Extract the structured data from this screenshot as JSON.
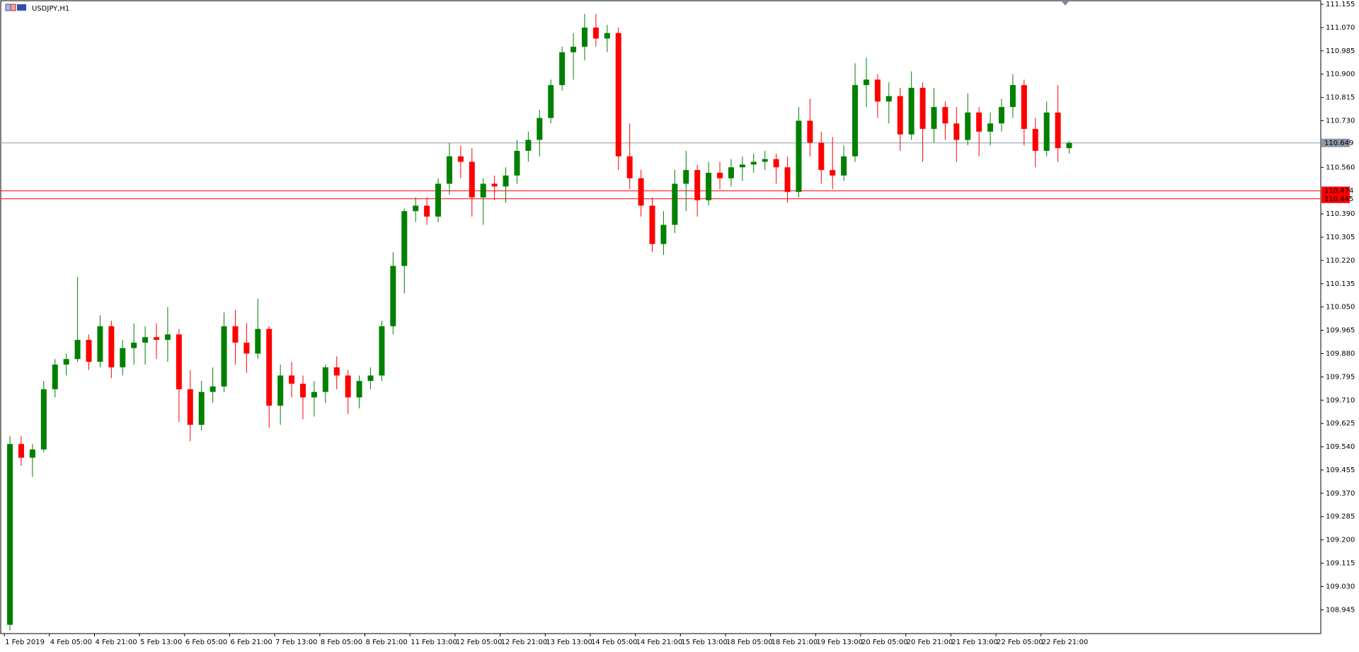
{
  "chart_data": {
    "type": "candlestick",
    "title": "USDJPY,H1",
    "categories": [
      "1 Feb 2019",
      null,
      null,
      null,
      "4 Feb 05:00",
      null,
      null,
      null,
      "4 Feb 21:00",
      null,
      null,
      null,
      "5 Feb 13:00",
      null,
      null,
      null,
      "6 Feb 05:00",
      null,
      null,
      null,
      "6 Feb 21:00",
      null,
      null,
      null,
      "7 Feb 13:00",
      null,
      null,
      null,
      "8 Feb 05:00",
      null,
      null,
      null,
      "8 Feb 21:00",
      null,
      null,
      null,
      "11 Feb 13:00",
      null,
      null,
      null,
      "12 Feb 05:00",
      null,
      null,
      null,
      "12 Feb 21:00",
      null,
      null,
      null,
      "13 Feb 13:00",
      null,
      null,
      null,
      "14 Feb 05:00",
      null,
      null,
      null,
      "14 Feb 21:00",
      null,
      null,
      null,
      "15 Feb 13:00",
      null,
      null,
      null,
      "18 Feb 05:00",
      null,
      null,
      null,
      "18 Feb 21:00",
      null,
      null,
      null,
      "19 Feb 13:00",
      null,
      null,
      null,
      "20 Feb 05:00",
      null,
      null,
      null,
      "20 Feb 21:00",
      null,
      null,
      null,
      "21 Feb 13:00",
      null,
      null,
      null,
      "22 Feb 05:00",
      null,
      null,
      null,
      "22 Feb 21:00",
      null,
      null
    ],
    "open": [
      108.89,
      109.55,
      109.5,
      109.53,
      109.75,
      109.84,
      109.86,
      109.93,
      109.85,
      109.98,
      109.83,
      109.9,
      109.92,
      109.94,
      109.93,
      109.95,
      109.75,
      109.62,
      109.74,
      109.76,
      109.98,
      109.92,
      109.88,
      109.97,
      109.69,
      109.8,
      109.77,
      109.72,
      109.74,
      109.83,
      109.8,
      109.72,
      109.78,
      109.8,
      109.98,
      110.2,
      110.4,
      110.42,
      110.38,
      110.5,
      110.6,
      110.58,
      110.45,
      110.5,
      110.49,
      110.53,
      110.62,
      110.66,
      110.74,
      110.86,
      110.98,
      111.0,
      111.07,
      111.03,
      111.05,
      110.6,
      110.52,
      110.42,
      110.28,
      110.35,
      110.5,
      110.55,
      110.44,
      110.54,
      110.52,
      110.56,
      110.57,
      110.58,
      110.59,
      110.56,
      110.47,
      110.73,
      110.65,
      110.55,
      110.53,
      110.6,
      110.86,
      110.88,
      110.8,
      110.82,
      110.68,
      110.85,
      110.7,
      110.78,
      110.72,
      110.66,
      110.76,
      110.69,
      110.72,
      110.78,
      110.86,
      110.7,
      110.62,
      110.76,
      110.63
    ],
    "high": [
      109.58,
      109.58,
      109.55,
      109.78,
      109.86,
      109.88,
      110.16,
      109.95,
      110.02,
      110.0,
      109.93,
      109.99,
      109.98,
      109.99,
      110.05,
      109.97,
      109.82,
      109.78,
      109.83,
      110.03,
      110.04,
      109.99,
      110.08,
      109.98,
      109.84,
      109.85,
      109.8,
      109.78,
      109.84,
      109.87,
      109.82,
      109.8,
      109.83,
      110.0,
      110.25,
      110.41,
      110.45,
      110.45,
      110.52,
      110.65,
      110.64,
      110.63,
      110.52,
      110.53,
      110.56,
      110.66,
      110.69,
      110.77,
      110.88,
      111.0,
      111.05,
      111.12,
      111.12,
      111.08,
      111.07,
      110.72,
      110.55,
      110.45,
      110.4,
      110.55,
      110.62,
      110.57,
      110.58,
      110.58,
      110.59,
      110.6,
      110.61,
      110.62,
      110.61,
      110.6,
      110.78,
      110.81,
      110.69,
      110.67,
      110.64,
      110.94,
      110.96,
      110.9,
      110.87,
      110.85,
      110.91,
      110.87,
      110.85,
      110.8,
      110.78,
      110.83,
      110.78,
      110.76,
      110.81,
      110.9,
      110.88,
      110.74,
      110.8,
      110.86,
      110.655
    ],
    "low": [
      108.87,
      109.47,
      109.43,
      109.52,
      109.72,
      109.8,
      109.85,
      109.82,
      109.83,
      109.79,
      109.8,
      109.84,
      109.84,
      109.86,
      109.85,
      109.63,
      109.56,
      109.6,
      109.7,
      109.74,
      109.84,
      109.81,
      109.86,
      109.61,
      109.62,
      109.72,
      109.64,
      109.65,
      109.7,
      109.75,
      109.66,
      109.68,
      109.75,
      109.78,
      109.95,
      110.1,
      110.36,
      110.35,
      110.36,
      110.46,
      110.52,
      110.38,
      110.35,
      110.44,
      110.43,
      110.5,
      110.58,
      110.6,
      110.72,
      110.84,
      110.88,
      110.95,
      111.0,
      110.98,
      110.55,
      110.48,
      110.38,
      110.25,
      110.24,
      110.32,
      110.4,
      110.38,
      110.42,
      110.48,
      110.49,
      110.51,
      110.54,
      110.55,
      110.5,
      110.43,
      110.45,
      110.6,
      110.5,
      110.48,
      110.51,
      110.58,
      110.78,
      110.74,
      110.72,
      110.62,
      110.66,
      110.58,
      110.65,
      110.66,
      110.58,
      110.64,
      110.6,
      110.64,
      110.69,
      110.74,
      110.64,
      110.56,
      110.6,
      110.58,
      110.61
    ],
    "close": [
      109.55,
      109.5,
      109.53,
      109.75,
      109.84,
      109.86,
      109.93,
      109.85,
      109.98,
      109.83,
      109.9,
      109.92,
      109.94,
      109.93,
      109.95,
      109.75,
      109.62,
      109.74,
      109.76,
      109.98,
      109.92,
      109.88,
      109.97,
      109.69,
      109.8,
      109.77,
      109.72,
      109.74,
      109.83,
      109.8,
      109.72,
      109.78,
      109.8,
      109.98,
      110.2,
      110.4,
      110.42,
      110.38,
      110.5,
      110.6,
      110.58,
      110.45,
      110.5,
      110.49,
      110.53,
      110.62,
      110.66,
      110.74,
      110.86,
      110.98,
      111.0,
      111.07,
      111.03,
      111.05,
      110.6,
      110.52,
      110.42,
      110.28,
      110.35,
      110.5,
      110.55,
      110.44,
      110.54,
      110.52,
      110.56,
      110.57,
      110.58,
      110.59,
      110.56,
      110.47,
      110.73,
      110.65,
      110.55,
      110.53,
      110.6,
      110.86,
      110.88,
      110.8,
      110.82,
      110.68,
      110.85,
      110.7,
      110.78,
      110.72,
      110.66,
      110.76,
      110.69,
      110.72,
      110.78,
      110.86,
      110.7,
      110.62,
      110.76,
      110.63,
      110.649
    ],
    "up_color": "#008000",
    "down_color": "#ff0000",
    "ylim": [
      108.858,
      111.168
    ],
    "yticks": [
      111.155,
      {
        "value": 111.07,
        "label": "111.070"
      },
      110.985,
      {
        "value": 110.9,
        "label": "110.900"
      },
      110.815,
      {
        "value": 110.73,
        "label": "110.730"
      },
      {
        "value": 110.56,
        "label": "110.560"
      },
      {
        "value": 110.39,
        "label": "110.390"
      },
      110.305,
      {
        "value": 110.22,
        "label": "110.220"
      },
      110.135,
      {
        "value": 110.05,
        "label": "110.050"
      },
      109.965,
      {
        "value": 109.88,
        "label": "109.880"
      },
      109.795,
      {
        "value": 109.71,
        "label": "109.710"
      },
      109.625,
      {
        "value": 109.54,
        "label": "109.540"
      },
      109.455,
      {
        "value": 109.37,
        "label": "109.370"
      },
      109.285,
      {
        "value": 109.2,
        "label": "109.200"
      },
      109.115,
      {
        "value": 109.03,
        "label": "109.030"
      },
      108.945
    ],
    "hlines": [
      {
        "value": 110.649,
        "color": "#8a9aa8"
      },
      {
        "value": 110.474,
        "color": "#ff0000"
      },
      {
        "value": 110.445,
        "color": "#ff0000"
      }
    ]
  }
}
